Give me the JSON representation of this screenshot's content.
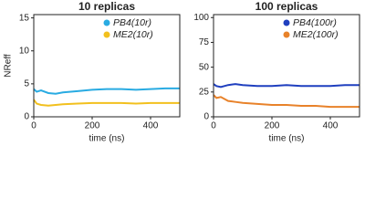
{
  "chart_data": [
    {
      "type": "line",
      "title": "10 replicas",
      "xlabel": "time (ns)",
      "ylabel": "NReff",
      "x": [
        0,
        10,
        25,
        50,
        75,
        100,
        150,
        200,
        250,
        300,
        350,
        400,
        450,
        500
      ],
      "series": [
        {
          "name": "PB4(10r)",
          "color": "#29abe2",
          "values": [
            4.2,
            3.8,
            4.0,
            3.6,
            3.5,
            3.7,
            3.9,
            4.1,
            4.2,
            4.2,
            4.1,
            4.2,
            4.3,
            4.3
          ]
        },
        {
          "name": "ME2(10r)",
          "color": "#f2c01e",
          "values": [
            2.6,
            2.0,
            1.8,
            1.7,
            1.8,
            1.9,
            2.0,
            2.1,
            2.1,
            2.1,
            2.0,
            2.1,
            2.1,
            2.1
          ]
        }
      ],
      "xlim": [
        0,
        500
      ],
      "ylim": [
        0,
        15.5
      ],
      "xticks": [
        0,
        200,
        400
      ],
      "yticks": [
        0,
        5,
        10,
        15
      ],
      "legend": "upper right"
    },
    {
      "type": "line",
      "title": "100 replicas",
      "xlabel": "time (ns)",
      "x": [
        0,
        10,
        25,
        50,
        75,
        100,
        150,
        200,
        250,
        300,
        350,
        400,
        450,
        500
      ],
      "series": [
        {
          "name": "PB4(100r)",
          "color": "#1f3fbf",
          "values": [
            33,
            31,
            30,
            32,
            33,
            32,
            31,
            31,
            32,
            31,
            31,
            31,
            32,
            32
          ]
        },
        {
          "name": "ME2(100r)",
          "color": "#e8822a",
          "values": [
            22,
            19,
            20,
            16,
            15,
            14,
            13,
            12,
            12,
            11,
            11,
            10,
            10,
            10
          ]
        }
      ],
      "xlim": [
        0,
        500
      ],
      "ylim": [
        0,
        103
      ],
      "xticks": [
        0,
        200,
        400
      ],
      "yticks": [
        0,
        25,
        50,
        75,
        100
      ],
      "legend": "upper right"
    }
  ]
}
